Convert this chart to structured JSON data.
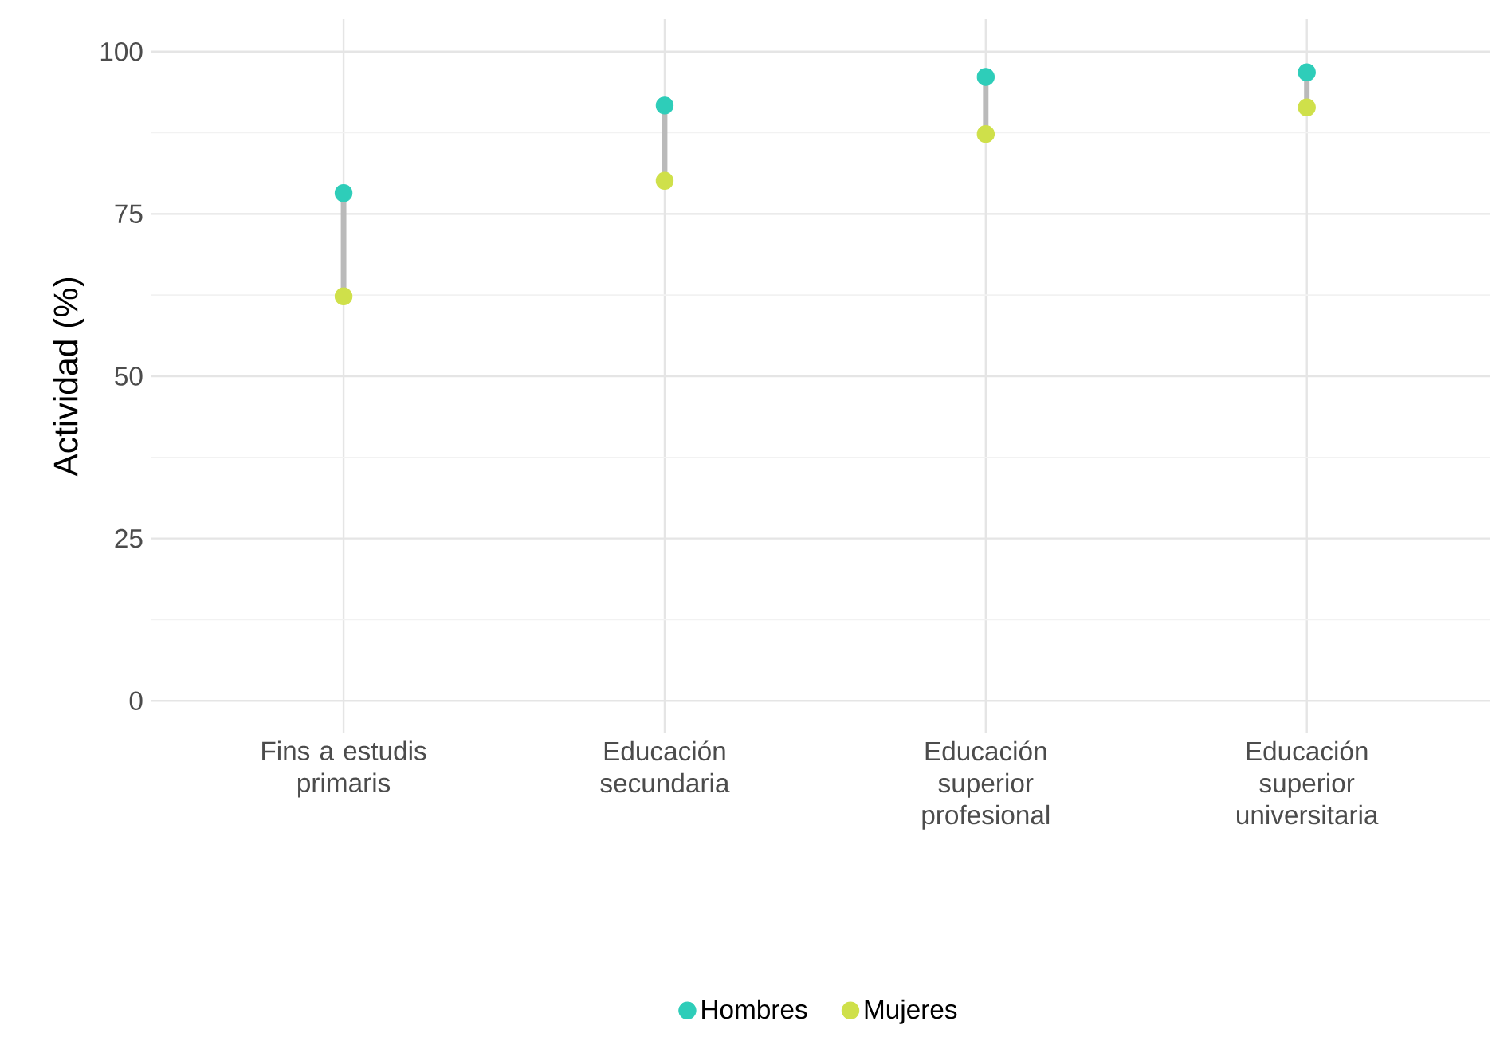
{
  "chart_data": {
    "type": "scatter",
    "ylabel": "Actividad (%)",
    "categories": [
      "Fins a estudis primaris",
      "Educación secundaria",
      "Educación superior profesional",
      "Educación superior universitaria"
    ],
    "series": [
      {
        "name": "Hombres",
        "color": "#2ecdb9",
        "values": [
          78.2,
          91.7,
          96.1,
          96.8
        ]
      },
      {
        "name": "Mujeres",
        "color": "#cfe04a",
        "values": [
          62.3,
          80.1,
          87.3,
          91.4
        ]
      }
    ],
    "ylim": [
      -5,
      105
    ],
    "yticks": [
      0,
      {
        "value": 12.5,
        "label": null
      },
      25,
      {
        "value": 37.5,
        "label": null
      },
      50,
      {
        "value": 62.5,
        "label": null
      },
      75,
      {
        "value": 87.5,
        "label": null
      },
      100
    ],
    "grid": true,
    "legend": "bottom",
    "marker": "circle"
  }
}
